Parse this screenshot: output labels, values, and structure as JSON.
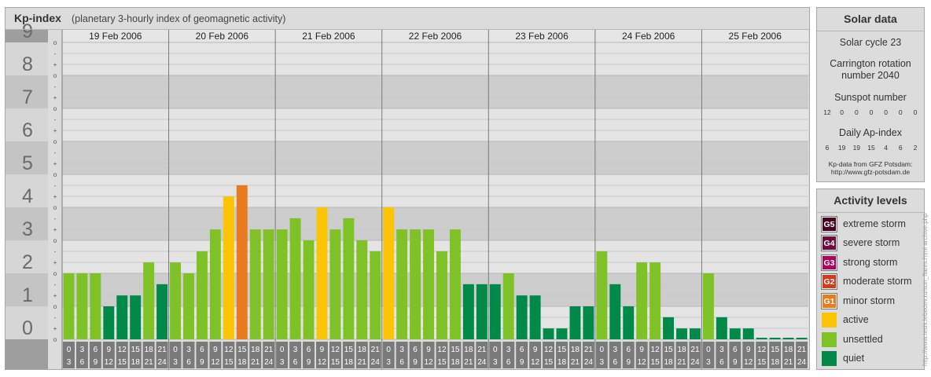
{
  "header": {
    "title": "Kp-index",
    "subtitle": "(planetary 3-hourly index of geomagnetic activity)"
  },
  "chart_data": {
    "type": "bar",
    "title": "Kp-index",
    "subtitle": "(planetary 3-hourly index of geomagnetic activity)",
    "ylim": [
      0,
      9
    ],
    "y_ticks": [
      "0",
      "1",
      "2",
      "3",
      "4",
      "5",
      "6",
      "7",
      "8",
      "9"
    ],
    "y_minor_ticks": [
      "o",
      "+",
      "-"
    ],
    "days": [
      "19 Feb 2006",
      "20 Feb 2006",
      "21 Feb 2006",
      "22 Feb 2006",
      "23 Feb 2006",
      "24 Feb 2006",
      "25 Feb 2006"
    ],
    "intervals": [
      [
        "0",
        "3"
      ],
      [
        "3",
        "6"
      ],
      [
        "6",
        "9"
      ],
      [
        "9",
        "12"
      ],
      [
        "12",
        "15"
      ],
      [
        "15",
        "18"
      ],
      [
        "18",
        "21"
      ],
      [
        "21",
        "24"
      ]
    ],
    "values": [
      [
        2.0,
        2.0,
        2.0,
        1.0,
        1.33,
        1.33,
        2.33,
        1.67
      ],
      [
        2.33,
        2.0,
        2.67,
        3.33,
        4.33,
        4.67,
        3.33,
        3.33
      ],
      [
        3.33,
        3.67,
        3.0,
        4.0,
        3.33,
        3.67,
        3.0,
        2.67
      ],
      [
        4.0,
        3.33,
        3.33,
        3.33,
        2.67,
        3.33,
        1.67,
        1.67
      ],
      [
        1.67,
        2.0,
        1.33,
        1.33,
        0.33,
        0.33,
        1.0,
        1.0
      ],
      [
        2.67,
        1.67,
        1.0,
        2.33,
        2.33,
        0.67,
        0.33,
        0.33
      ],
      [
        2.0,
        0.67,
        0.33,
        0.33,
        0.0,
        0.0,
        0.0,
        0.0
      ]
    ],
    "level_colors": {
      "quiet": "#008a4a",
      "unsettled": "#7ec227",
      "active": "#fbc405",
      "minor_storm": "#e87b1e",
      "moderate_storm": "#d63a1b",
      "strong_storm": "#b2005a",
      "severe_storm": "#6e0a3c",
      "extreme_storm": "#4a0020"
    }
  },
  "solar": {
    "title": "Solar data",
    "cycle": "Solar cycle 23",
    "carrington_line1": "Carrington rotation",
    "carrington_line2": "number 2040",
    "sunspot_label": "Sunspot number",
    "sunspot_values": [
      "12",
      "0",
      "0",
      "0",
      "0",
      "0",
      "0"
    ],
    "ap_label": "Daily Ap-index",
    "ap_values": [
      "6",
      "19",
      "19",
      "15",
      "4",
      "6",
      "2"
    ],
    "credit_line1": "Kp-data from GFZ Potsdam:",
    "credit_line2": "http://www.gfz-potsdam.de"
  },
  "activity": {
    "title": "Activity levels",
    "levels": [
      {
        "code": "G5",
        "label": "extreme storm",
        "color": "#4a0020"
      },
      {
        "code": "G4",
        "label": "severe storm",
        "color": "#6e0a3c"
      },
      {
        "code": "G3",
        "label": "strong storm",
        "color": "#b2005a"
      },
      {
        "code": "G2",
        "label": "moderate storm",
        "color": "#d63a1b"
      },
      {
        "code": "G1",
        "label": "minor storm",
        "color": "#e87b1e"
      },
      {
        "code": "",
        "label": "active",
        "color": "#fbc405"
      },
      {
        "code": "",
        "label": "unsettled",
        "color": "#7ec227"
      },
      {
        "code": "",
        "label": "quiet",
        "color": "#008a4a"
      }
    ]
  },
  "watermark": "http://www.tesis.lebedev.ru/sun_flares.html archive.php"
}
